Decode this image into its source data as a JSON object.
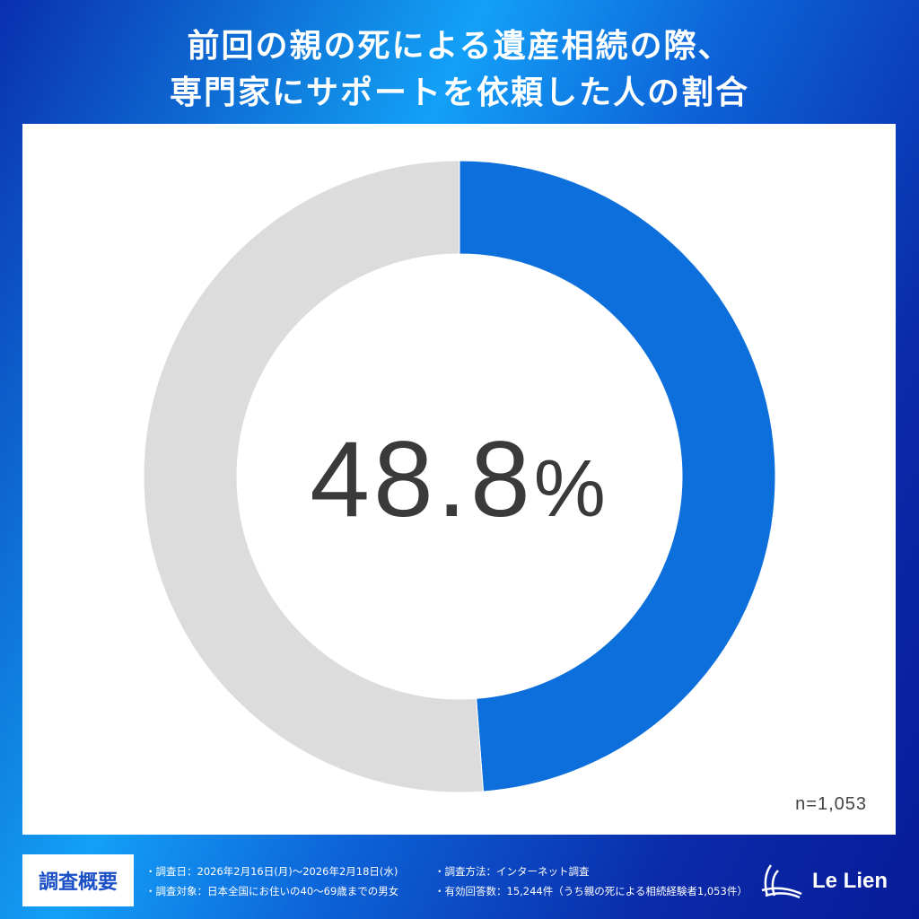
{
  "title": {
    "line1": "前回の親の死による遺産相続の際、",
    "line2": "専門家にサポートを依頼した人の割合"
  },
  "chart_data": {
    "type": "pie",
    "style": "donut",
    "values": [
      48.8,
      51.2
    ],
    "center_label": "48.8",
    "center_unit": "%",
    "colors": [
      "#0c6fdc",
      "#dcdcdc"
    ],
    "note": "n=1,053"
  },
  "footer": {
    "badge": "調査概要",
    "items": [
      "・調査日：2026年2月16日(月)～2026年2月18日(水)",
      "・調査対象：日本全国にお住いの40～69歳までの男女",
      "・調査方法：インターネット調査",
      "・有効回答数：15,244件（うち親の死による相続経験者1,053件）"
    ],
    "logo": "Le Lien"
  }
}
